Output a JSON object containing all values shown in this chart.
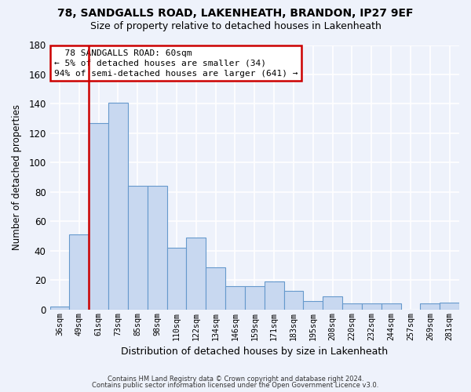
{
  "title1": "78, SANDGALLS ROAD, LAKENHEATH, BRANDON, IP27 9EF",
  "title2": "Size of property relative to detached houses in Lakenheath",
  "xlabel": "Distribution of detached houses by size in Lakenheath",
  "ylabel": "Number of detached properties",
  "footnote1": "Contains HM Land Registry data © Crown copyright and database right 2024.",
  "footnote2": "Contains public sector information licensed under the Open Government Licence v3.0.",
  "annotation_title": "78 SANDGALLS ROAD: 60sqm",
  "annotation_line1": "← 5% of detached houses are smaller (34)",
  "annotation_line2": "94% of semi-detached houses are larger (641) →",
  "bar_labels": [
    "36sqm",
    "49sqm",
    "61sqm",
    "73sqm",
    "85sqm",
    "98sqm",
    "110sqm",
    "122sqm",
    "134sqm",
    "146sqm",
    "159sqm",
    "171sqm",
    "183sqm",
    "195sqm",
    "208sqm",
    "220sqm",
    "232sqm",
    "244sqm",
    "257sqm",
    "269sqm",
    "281sqm"
  ],
  "bar_values": [
    2,
    51,
    127,
    141,
    84,
    84,
    42,
    49,
    29,
    16,
    16,
    19,
    13,
    6,
    9,
    4,
    4,
    4,
    0,
    4,
    5
  ],
  "bar_color": "#c8d8f0",
  "bar_edge_color": "#6699cc",
  "red_line_index": 2,
  "red_line_color": "#cc0000",
  "background_color": "#eef2fb",
  "grid_color": "#ffffff",
  "annotation_box_color": "#ffffff",
  "annotation_box_edge": "#cc0000",
  "ylim": [
    0,
    180
  ],
  "yticks": [
    0,
    20,
    40,
    60,
    80,
    100,
    120,
    140,
    160,
    180
  ]
}
